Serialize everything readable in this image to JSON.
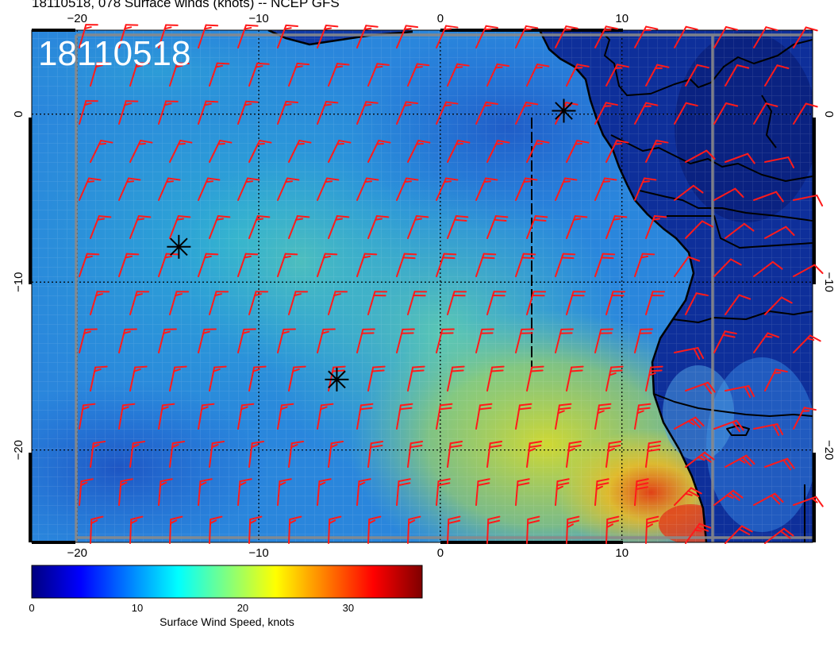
{
  "title": "18110518, 078 Surface winds (knots) -- NCEP GFS",
  "map_label": "18110518",
  "map": {
    "lon_range": [
      -22.5,
      20.5
    ],
    "lat_range": [
      -25.5,
      5
    ],
    "lon_ticks": [
      {
        "value": -20,
        "label": "−20"
      },
      {
        "value": -10,
        "label": "−10"
      },
      {
        "value": 0,
        "label": "0"
      },
      {
        "value": 10,
        "label": "10"
      }
    ],
    "lat_ticks": [
      {
        "value": 0,
        "label": "0"
      },
      {
        "value": -10,
        "label": "−10"
      },
      {
        "value": -20,
        "label": "−20"
      }
    ],
    "gridlines": "dotted",
    "storm_markers": [
      {
        "lon": 6.8,
        "lat": 0.2
      },
      {
        "lon": -14.4,
        "lat": -7.9
      },
      {
        "lon": -5.7,
        "lat": -15.8
      }
    ],
    "colors": {
      "barbs": "#ff1a1a",
      "coastline": "#000000",
      "ocean_low": "#1a52c8",
      "ocean_high": "#e0d020",
      "land": "#0a2a8c"
    }
  },
  "colorbar": {
    "title": "Surface Wind Speed, knots",
    "ticks": [
      {
        "value": 0,
        "label": "0"
      },
      {
        "value": 10,
        "label": "10"
      },
      {
        "value": 20,
        "label": "20"
      },
      {
        "value": 30,
        "label": "30"
      }
    ],
    "range": [
      0,
      37
    ],
    "colors": [
      "#00007f",
      "#0000ff",
      "#0080ff",
      "#00ffff",
      "#80ff80",
      "#ffff00",
      "#ff8000",
      "#ff0000",
      "#7f0000"
    ]
  }
}
